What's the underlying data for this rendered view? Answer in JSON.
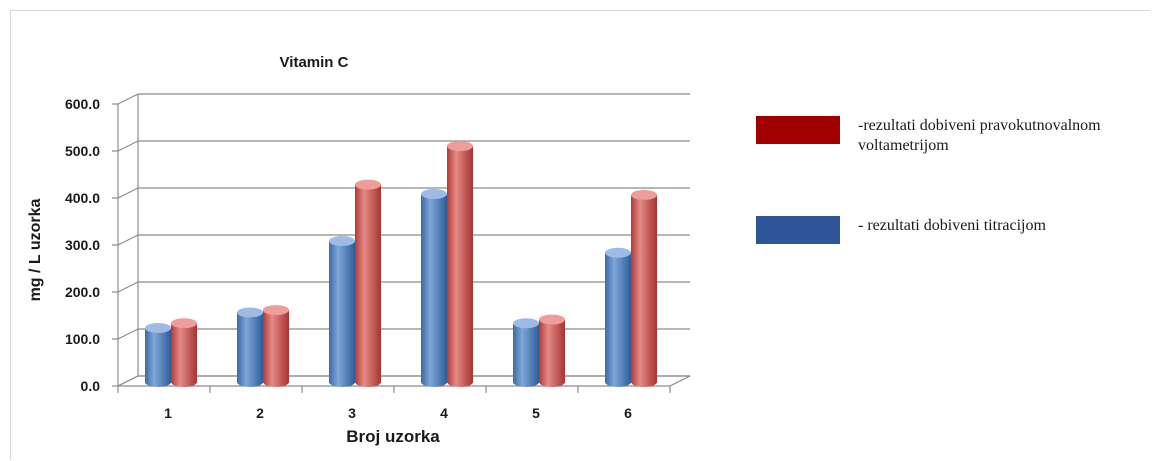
{
  "chart_data": {
    "type": "bar",
    "title": "Vitamin C",
    "xlabel": "Broj uzorka",
    "ylabel": "mg /  L uzorka",
    "categories": [
      "1",
      "2",
      "3",
      "4",
      "5",
      "6"
    ],
    "ylim": [
      0,
      600
    ],
    "yticks": [
      "0.0",
      "100.0",
      "200.0",
      "300.0",
      "400.0",
      "500.0",
      "600.0"
    ],
    "grid": true,
    "legend_position": "right",
    "series": [
      {
        "name": "- rezultati dobiveni titracijom",
        "color": "#4f81bd",
        "values": [
          115,
          148,
          300,
          400,
          125,
          275
        ]
      },
      {
        "name": "-rezultati dobiveni pravokutnovalnom voltametrijom",
        "color": "#c0504d",
        "values": [
          125,
          153,
          420,
          502,
          133,
          398
        ]
      }
    ]
  },
  "legend": {
    "items": [
      {
        "label": "-rezultati dobiveni pravokutnovalnom voltametrijom",
        "color": "#a00000"
      },
      {
        "label": "- rezultati dobiveni titracijom",
        "color": "#2e5597"
      }
    ]
  }
}
